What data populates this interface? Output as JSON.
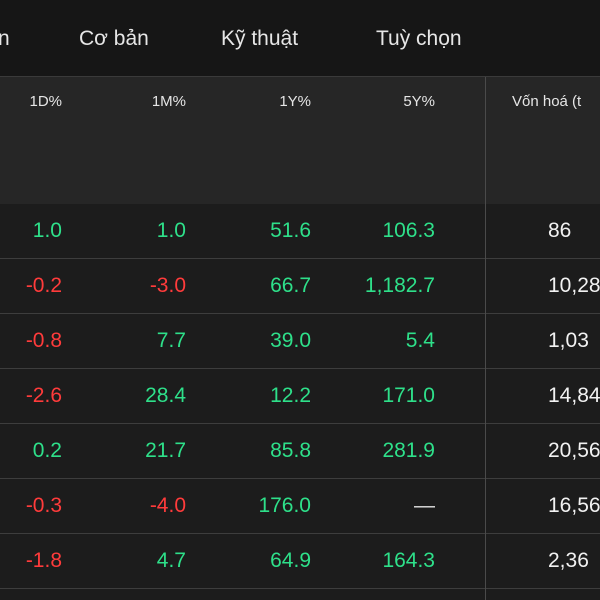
{
  "tabs": [
    {
      "label": "n"
    },
    {
      "label": "Cơ bản"
    },
    {
      "label": "Kỹ thuật"
    },
    {
      "label": "Tuỳ chọn"
    }
  ],
  "table": {
    "headers": [
      "1D%",
      "1M%",
      "1Y%",
      "5Y%",
      "Vốn hoá (t"
    ],
    "rows": [
      {
        "d1": "1.0",
        "m1": "1.0",
        "y1": "51.6",
        "y5": "106.3",
        "cap": "86"
      },
      {
        "d1": "-0.2",
        "m1": "-3.0",
        "y1": "66.7",
        "y5": "1,182.7",
        "cap": "10,28"
      },
      {
        "d1": "-0.8",
        "m1": "7.7",
        "y1": "39.0",
        "y5": "5.4",
        "cap": "1,03"
      },
      {
        "d1": "-2.6",
        "m1": "28.4",
        "y1": "12.2",
        "y5": "171.0",
        "cap": "14,84"
      },
      {
        "d1": "0.2",
        "m1": "21.7",
        "y1": "85.8",
        "y5": "281.9",
        "cap": "20,56"
      },
      {
        "d1": "-0.3",
        "m1": "-4.0",
        "y1": "176.0",
        "y5": "—",
        "cap": "16,56"
      },
      {
        "d1": "-1.8",
        "m1": "4.7",
        "y1": "64.9",
        "y5": "164.3",
        "cap": "2,36"
      }
    ]
  },
  "colors": {
    "positive": "#2ee08a",
    "negative": "#ff3b3b",
    "neutral": "#e6e6e6"
  }
}
